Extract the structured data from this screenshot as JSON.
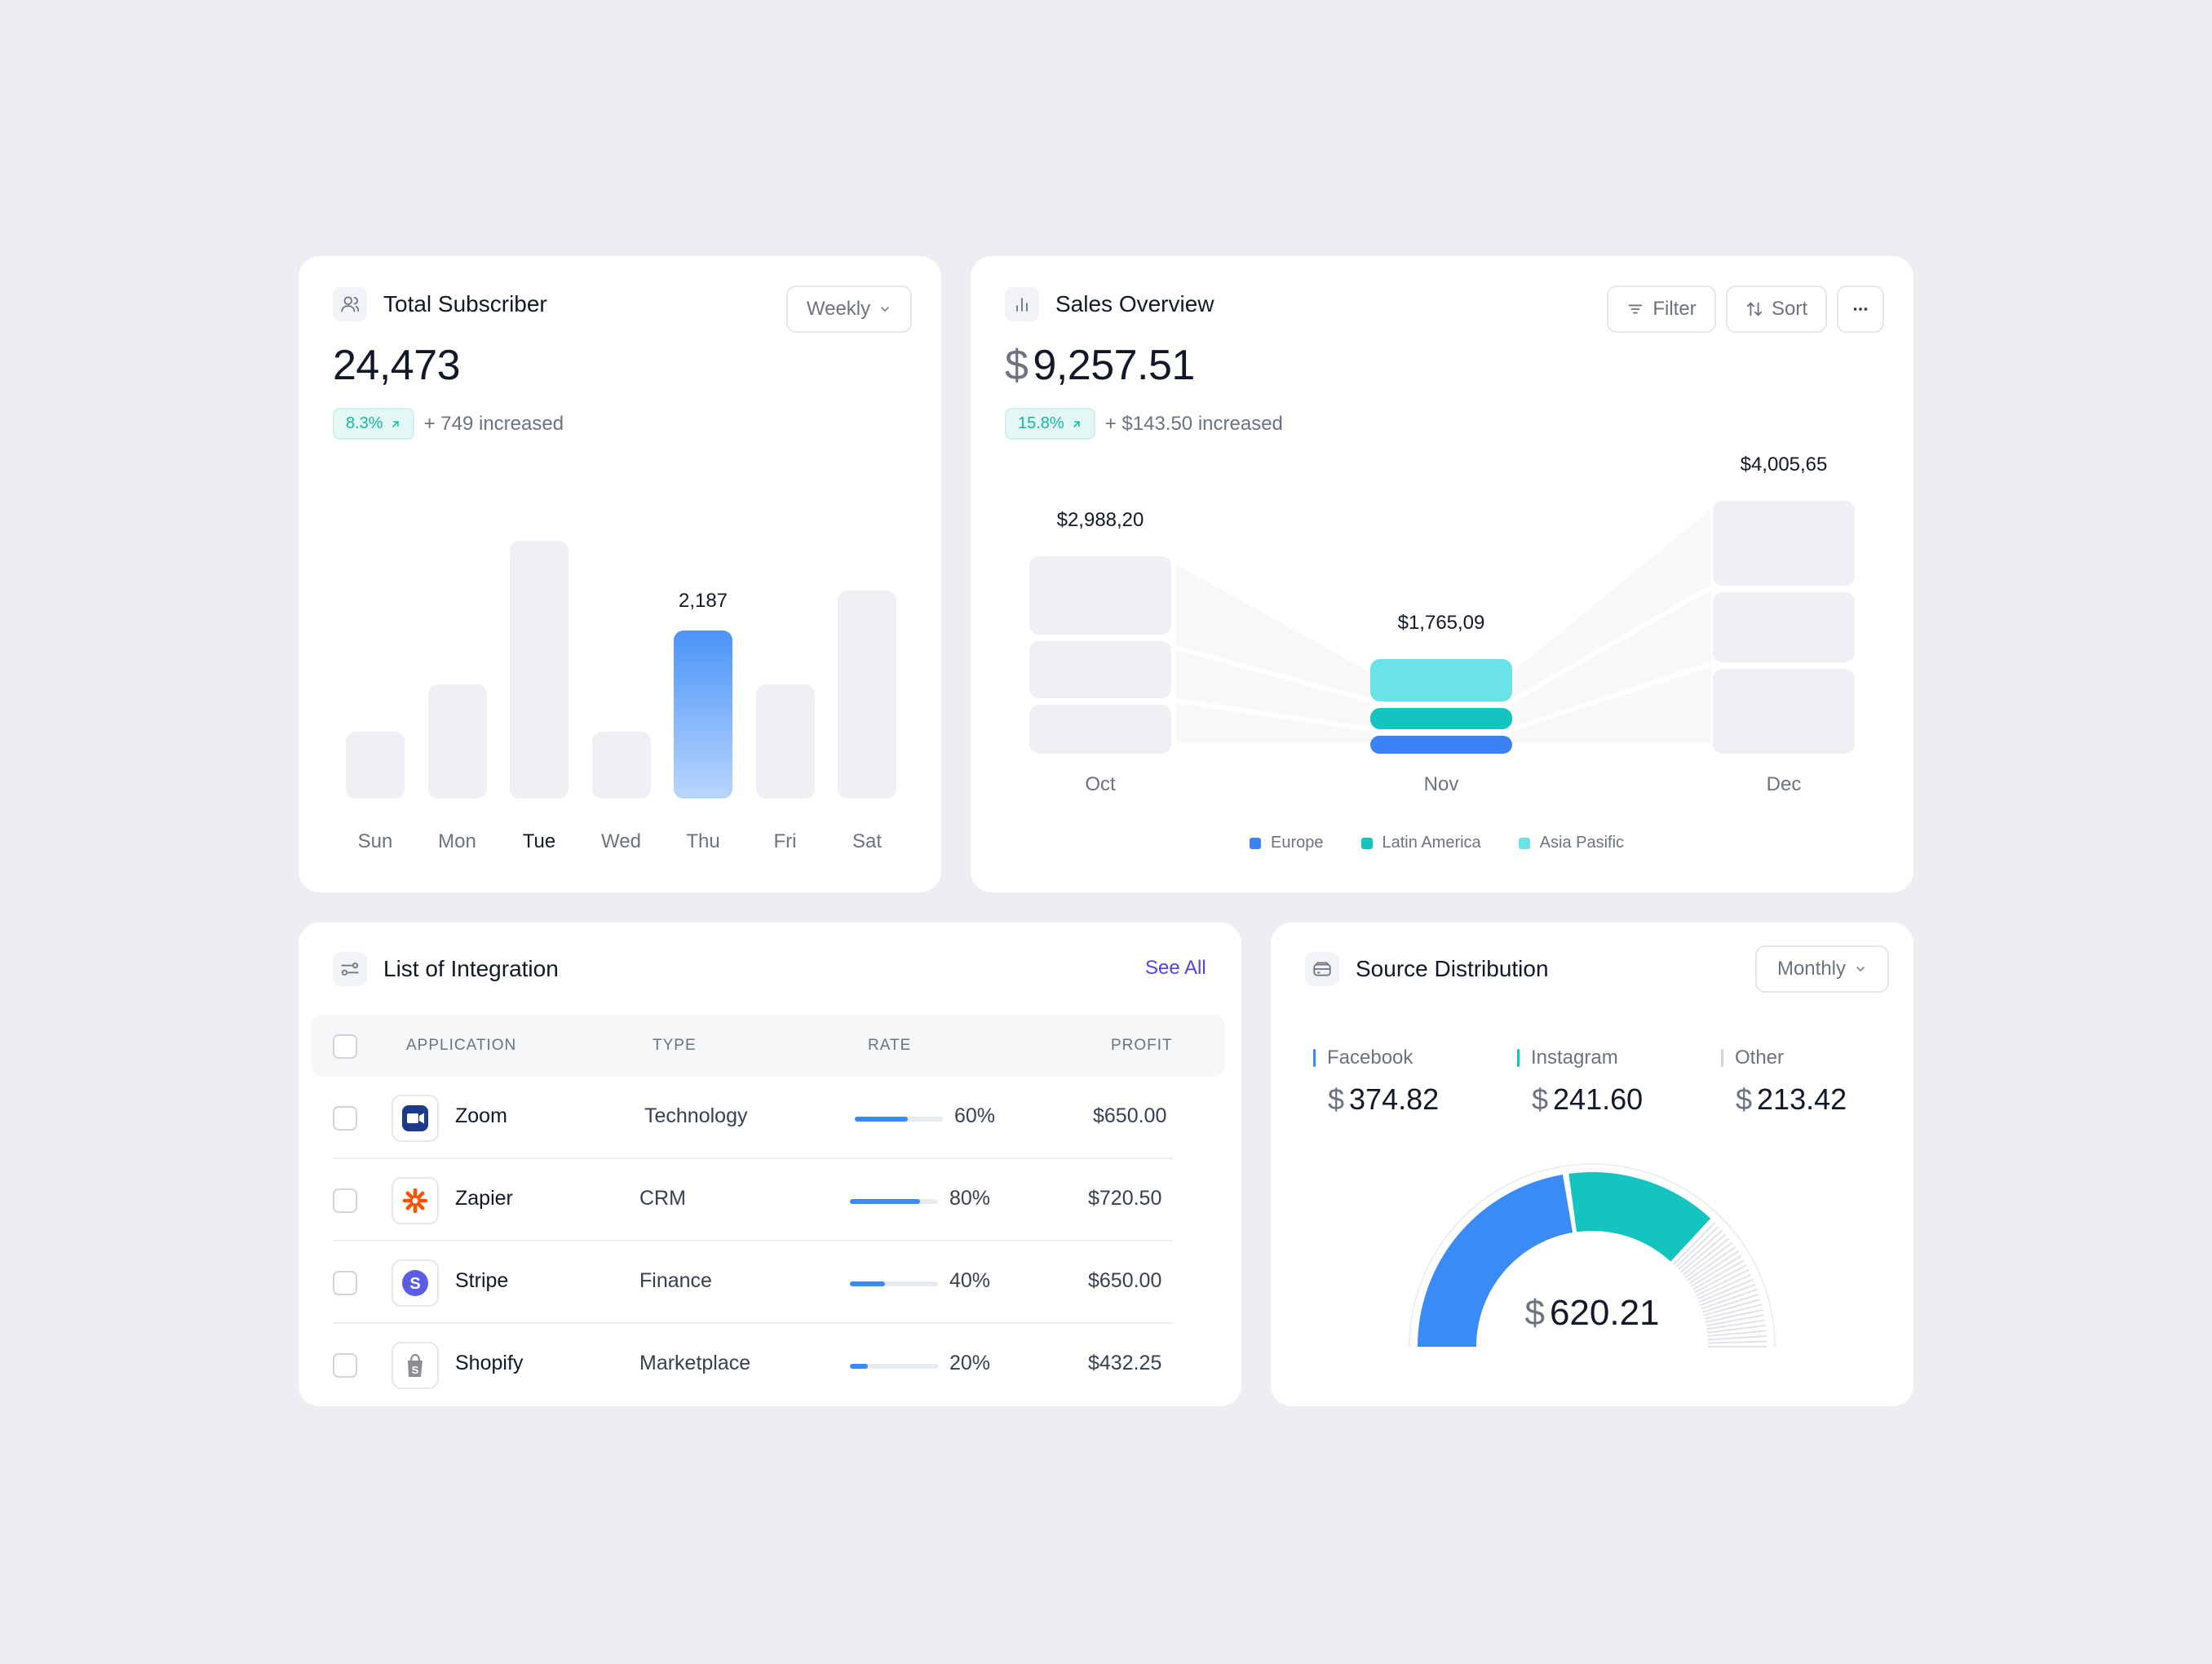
{
  "subscriber": {
    "title": "Total Subscriber",
    "period": "Weekly",
    "total": "24,473",
    "change_pct": "8.3%",
    "change_text": "+ 749 increased",
    "active_value_label": "2,187",
    "chart_data": {
      "type": "bar",
      "categories": [
        "Sun",
        "Mon",
        "Tue",
        "Wed",
        "Thu",
        "Fri",
        "Sat"
      ],
      "values": [
        470,
        800,
        1810,
        470,
        1180,
        800,
        1460
      ],
      "highlighted_category": "Thu",
      "highlight_color": "#4b94f7",
      "bar_color": "#eef0f3"
    }
  },
  "sales": {
    "title": "Sales Overview",
    "filter_label": "Filter",
    "sort_label": "Sort",
    "currency": "$",
    "total": "9,257.51",
    "change_pct": "15.8%",
    "change_text": "+ $143.50 increased",
    "chart_data": {
      "type": "bar",
      "stacked": true,
      "categories": [
        "Oct",
        "Nov",
        "Dec"
      ],
      "totals_labels": [
        "$2,988,20",
        "$1,765,09",
        "$4,005,65"
      ],
      "series": [
        {
          "name": "Europe",
          "color": "#3b82f6",
          "values": [
            2988.2,
            1765.09,
            4005.65
          ]
        },
        {
          "name": "Latin America",
          "color": "#14c4be",
          "values": [
            0,
            0,
            0
          ]
        },
        {
          "name": "Asia Pasific",
          "color": "#6ae3e6",
          "values": [
            0,
            0,
            0
          ]
        }
      ],
      "highlighted_category": "Nov"
    }
  },
  "integration": {
    "title": "List of Integration",
    "see_all": "See All",
    "columns": [
      "APPLICATION",
      "TYPE",
      "RATE",
      "PROFIT"
    ],
    "rows": [
      {
        "app": "Zoom",
        "type": "Technology",
        "rate": 60,
        "rate_label": "60%",
        "profit": "$650.00",
        "icon": "zoom-icon"
      },
      {
        "app": "Zapier",
        "type": "CRM",
        "rate": 80,
        "rate_label": "80%",
        "profit": "$720.50",
        "icon": "zapier-icon"
      },
      {
        "app": "Stripe",
        "type": "Finance",
        "rate": 40,
        "rate_label": "40%",
        "profit": "$650.00",
        "icon": "stripe-icon"
      },
      {
        "app": "Shopify",
        "type": "Marketplace",
        "rate": 20,
        "rate_label": "20%",
        "profit": "$432.25",
        "icon": "shopify-icon"
      }
    ]
  },
  "source": {
    "title": "Source Distribution",
    "period": "Monthly",
    "currency": "$",
    "items": [
      {
        "name": "Facebook",
        "value": "374.82",
        "color": "#3b8bf6"
      },
      {
        "name": "Instagram",
        "value": "241.60",
        "color": "#14c4be"
      },
      {
        "name": "Other",
        "value": "213.42",
        "color": "#d1d5db"
      }
    ],
    "center_value": "620.21",
    "gauge": {
      "type": "pie",
      "values": [
        374.82,
        241.6,
        213.42
      ],
      "labels": [
        "Facebook",
        "Instagram",
        "Other"
      ]
    }
  }
}
